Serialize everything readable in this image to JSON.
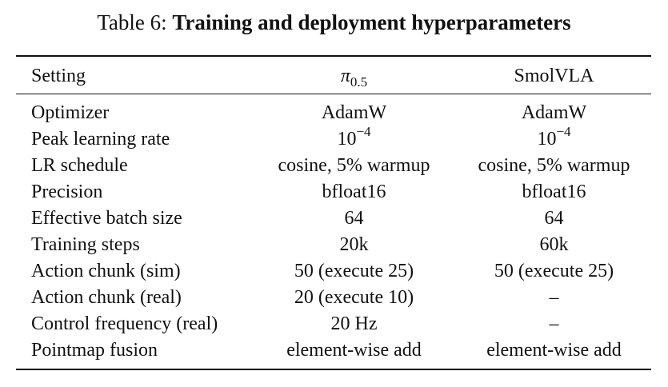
{
  "caption": {
    "label": "Table 6:",
    "title": "Training and deployment hyperparameters"
  },
  "table": {
    "headers": [
      "Setting",
      "π",
      "0.5",
      "SmolVLA"
    ],
    "rows": [
      {
        "setting": "Optimizer",
        "pi05": "AdamW",
        "smolvla": "AdamW"
      },
      {
        "setting": "Peak learning rate",
        "pi05": "10",
        "pi05_exp": "−4",
        "smolvla": "10",
        "smolvla_exp": "−4"
      },
      {
        "setting": "LR schedule",
        "pi05": "cosine, 5% warmup",
        "smolvla": "cosine, 5% warmup"
      },
      {
        "setting": "Precision",
        "pi05": "bfloat16",
        "smolvla": "bfloat16"
      },
      {
        "setting": "Effective batch size",
        "pi05": "64",
        "smolvla": "64"
      },
      {
        "setting": "Training steps",
        "pi05": "20k",
        "smolvla": "60k"
      },
      {
        "setting": "Action chunk (sim)",
        "pi05": "50 (execute 25)",
        "smolvla": "50 (execute 25)"
      },
      {
        "setting": "Action chunk (real)",
        "pi05": "20 (execute 10)",
        "smolvla": "–"
      },
      {
        "setting": "Control frequency (real)",
        "pi05": "20 Hz",
        "smolvla": "–"
      },
      {
        "setting": "Pointmap fusion",
        "pi05": "element-wise add",
        "smolvla": "element-wise add"
      }
    ]
  }
}
